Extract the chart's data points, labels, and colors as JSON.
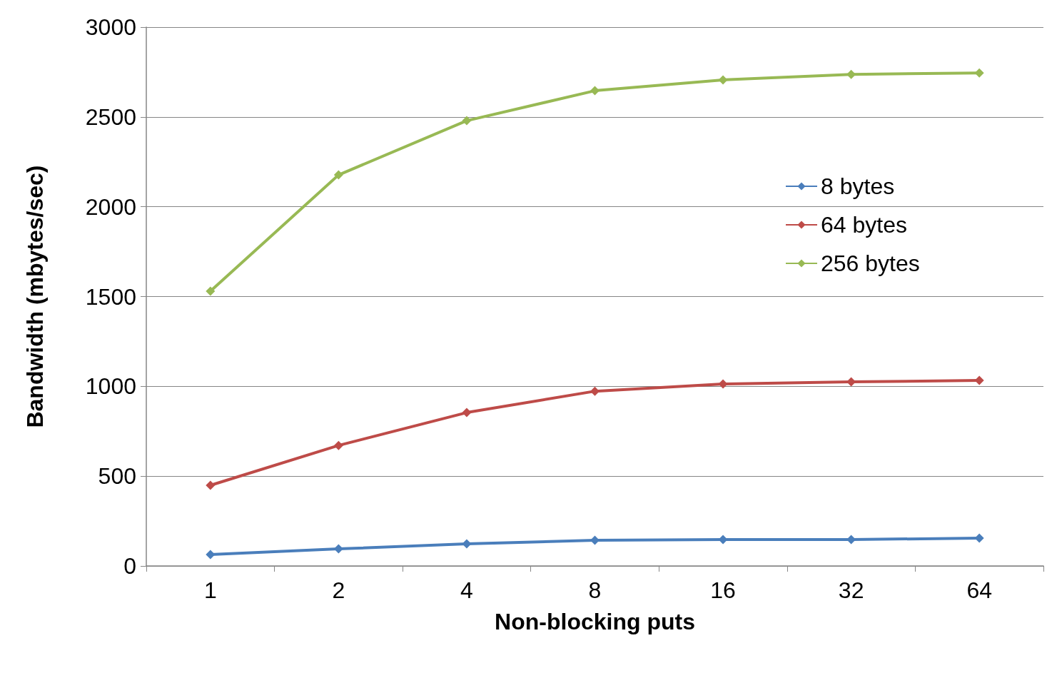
{
  "chart_data": {
    "type": "line",
    "xlabel": "Non-blocking puts",
    "ylabel": "Bandwidth (mbytes/sec)",
    "categories": [
      "1",
      "2",
      "4",
      "8",
      "16",
      "32",
      "64"
    ],
    "series": [
      {
        "name": "8 bytes",
        "color": "#4a7ebb",
        "values": [
          64,
          95,
          123,
          143,
          147,
          147,
          155
        ]
      },
      {
        "name": "64 bytes",
        "color": "#be4b48",
        "values": [
          449,
          671,
          854,
          973,
          1013,
          1025,
          1033
        ]
      },
      {
        "name": "256 bytes",
        "color": "#98b954",
        "values": [
          1530,
          2177,
          2479,
          2646,
          2706,
          2737,
          2745
        ]
      }
    ],
    "ylim": [
      0,
      3000
    ],
    "yticks": [
      0,
      500,
      1000,
      1500,
      2000,
      2500,
      3000
    ],
    "grid": "y",
    "legend": "top right",
    "marker": "diamond",
    "line_style": "solid"
  }
}
